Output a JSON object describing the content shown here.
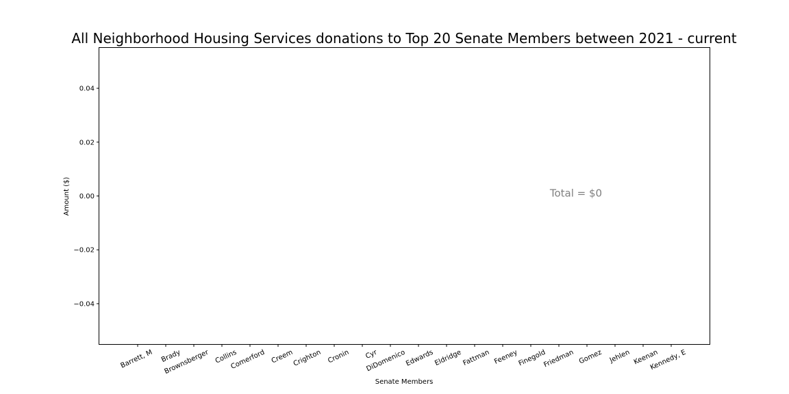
{
  "chart_data": {
    "type": "bar",
    "title": "All Neighborhood Housing Services donations to Top 20 Senate Members between 2021 - current",
    "xlabel": "Senate Members",
    "ylabel": "Amount ($)",
    "categories": [
      "Barrett, M",
      "Brady",
      "Brownsberger",
      "Collins",
      "Comerford",
      "Creem",
      "Crighton",
      "Cronin",
      "Cyr",
      "DiDomenico",
      "Edwards",
      "Eldridge",
      "Fattman",
      "Feeney",
      "Finegold",
      "Friedman",
      "Gomez",
      "Jehlen",
      "Keenan",
      "Kennedy, E"
    ],
    "values": [
      0,
      0,
      0,
      0,
      0,
      0,
      0,
      0,
      0,
      0,
      0,
      0,
      0,
      0,
      0,
      0,
      0,
      0,
      0,
      0
    ],
    "ylim": [
      -0.055,
      0.055
    ],
    "yticks": [
      -0.04,
      -0.02,
      0.0,
      0.02,
      0.04
    ],
    "ytick_labels": [
      "−0.04",
      "−0.02",
      "0.00",
      "0.02",
      "0.04"
    ],
    "annotation": "Total = $0",
    "annotation_position": {
      "x_category_index": 17,
      "y": 0.001
    },
    "grid": false,
    "legend": "none"
  }
}
